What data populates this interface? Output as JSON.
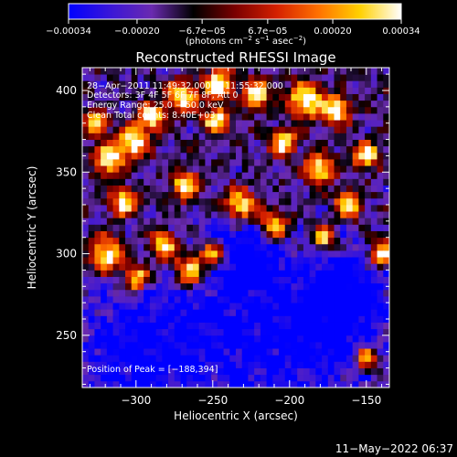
{
  "chart_data": {
    "type": "heatmap",
    "title": "Reconstructed RHESSI Image",
    "xlabel": "Heliocentric X (arcsec)",
    "ylabel": "Heliocentric Y (arcsec)",
    "xlim": [
      -335,
      -135
    ],
    "ylim": [
      218,
      414
    ],
    "xticks": [
      -300,
      -250,
      -200,
      -150
    ],
    "yticks": [
      250,
      300,
      350,
      400
    ],
    "xtick_labels": [
      "−300",
      "−250",
      "−200",
      "−150"
    ],
    "ytick_labels": [
      "250",
      "300",
      "350",
      "400"
    ],
    "colorbar": {
      "range": [
        -0.00034,
        0.00034
      ],
      "ticks": [
        -0.00034,
        -0.0002,
        -6.7e-05,
        6.7e-05,
        0.0002,
        0.00034
      ],
      "tick_labels": [
        "−0.00034",
        "−0.00020",
        "−6.7e−05",
        "6.7e−05",
        "0.00020",
        "0.00034"
      ],
      "unit_label_parts": {
        "a": "(photons cm",
        "b": "−2",
        "c": " s",
        "d": "−1",
        "e": " asec",
        "f": "−2",
        "g": ")"
      },
      "colormap": [
        "#0000ff",
        "#3a16d8",
        "#6a2ab0",
        "#000000",
        "#7a0000",
        "#d42000",
        "#ff7000",
        "#ffd000",
        "#ffffff"
      ]
    },
    "annotations": {
      "line1": "28−Apr−2011 11:49:32.000 to 11:55:32.000",
      "line2": "Detectors: 3F 4F 5F 6F 7F 8F, Att 0",
      "line3": "Energy Range: 25.0 − 50.0 keV",
      "line4": "Clean     Total counts: 8.40E+03",
      "peak": "Position of Peak = [−188,394]"
    },
    "peak_position": [
      -188,
      394
    ],
    "hot_sources": [
      {
        "x": -318,
        "y": 358,
        "r": 9
      },
      {
        "x": -302,
        "y": 368,
        "r": 10
      },
      {
        "x": -290,
        "y": 384,
        "r": 8
      },
      {
        "x": -270,
        "y": 396,
        "r": 10
      },
      {
        "x": -246,
        "y": 404,
        "r": 9
      },
      {
        "x": -222,
        "y": 398,
        "r": 9
      },
      {
        "x": -190,
        "y": 394,
        "r": 11
      },
      {
        "x": -170,
        "y": 388,
        "r": 9
      },
      {
        "x": -150,
        "y": 360,
        "r": 8
      },
      {
        "x": -248,
        "y": 382,
        "r": 8
      },
      {
        "x": -204,
        "y": 368,
        "r": 8
      },
      {
        "x": -180,
        "y": 352,
        "r": 9
      },
      {
        "x": -232,
        "y": 330,
        "r": 10
      },
      {
        "x": -268,
        "y": 342,
        "r": 9
      },
      {
        "x": -210,
        "y": 318,
        "r": 9
      },
      {
        "x": -318,
        "y": 300,
        "r": 11
      },
      {
        "x": -282,
        "y": 305,
        "r": 9
      },
      {
        "x": -300,
        "y": 285,
        "r": 8
      },
      {
        "x": -265,
        "y": 290,
        "r": 10
      },
      {
        "x": -250,
        "y": 300,
        "r": 7
      },
      {
        "x": -162,
        "y": 330,
        "r": 8
      },
      {
        "x": -178,
        "y": 310,
        "r": 7
      },
      {
        "x": -140,
        "y": 300,
        "r": 8
      },
      {
        "x": -326,
        "y": 380,
        "r": 7
      },
      {
        "x": -308,
        "y": 332,
        "r": 8
      },
      {
        "x": -150,
        "y": 236,
        "r": 7
      }
    ],
    "cold_regions": [
      {
        "x": -245,
        "y": 255,
        "r": 55
      },
      {
        "x": -175,
        "y": 250,
        "r": 40
      },
      {
        "x": -305,
        "y": 240,
        "r": 35
      },
      {
        "x": -225,
        "y": 300,
        "r": 22
      },
      {
        "x": -160,
        "y": 280,
        "r": 25
      }
    ]
  },
  "footer": {
    "timestamp": "11−May−2022 06:37"
  }
}
